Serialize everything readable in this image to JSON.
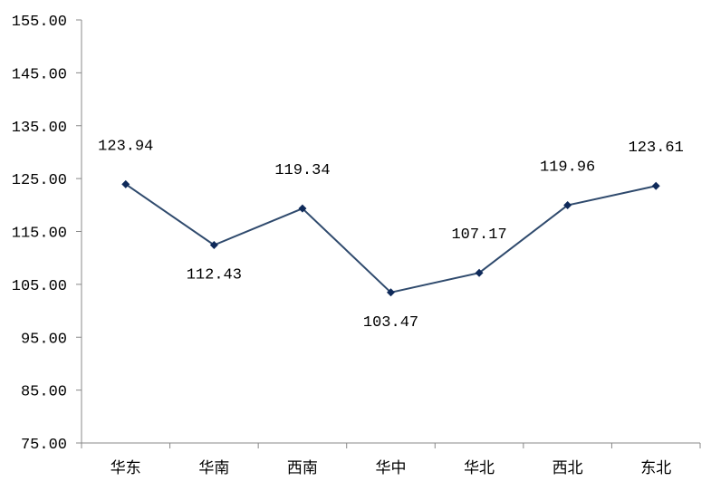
{
  "chart_data": {
    "type": "line",
    "title": "",
    "xlabel": "",
    "ylabel": "",
    "categories": [
      "华东",
      "华南",
      "西南",
      "华中",
      "华北",
      "西北",
      "东北"
    ],
    "series": [
      {
        "values": [
          123.94,
          112.43,
          119.34,
          103.47,
          107.17,
          119.96,
          123.61
        ]
      }
    ],
    "data_labels": [
      "123.94",
      "112.43",
      "119.34",
      "103.47",
      "107.17",
      "119.96",
      "123.61"
    ],
    "ylim": [
      75,
      155
    ],
    "yticks": [
      75,
      85,
      95,
      105,
      115,
      125,
      135,
      145,
      155
    ],
    "ytick_labels": [
      "75.00",
      "85.00",
      "95.00",
      "105.00",
      "115.00",
      "125.00",
      "135.00",
      "145.00",
      "155.00"
    ],
    "grid": false,
    "legend": "none",
    "colors": {
      "line": "#2f4a6d",
      "marker": "#0f2a5a",
      "axis": "#888888"
    }
  }
}
